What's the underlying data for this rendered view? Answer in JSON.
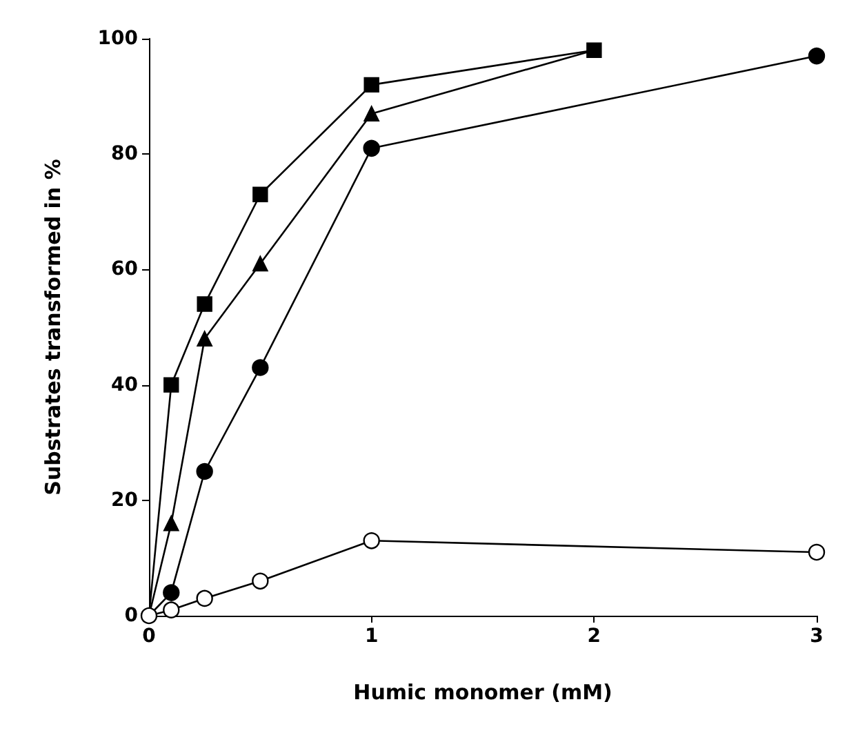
{
  "chart_data": {
    "type": "line",
    "xlabel": "Humic monomer (mM)",
    "ylabel": "Substrates transformed in %",
    "xlim": [
      0,
      3
    ],
    "xticks": [
      0,
      1,
      2,
      3
    ],
    "ylim": [
      0,
      100
    ],
    "yticks": [
      0,
      20,
      40,
      60,
      80,
      100
    ],
    "grid": false,
    "line_style": "solid",
    "series": [
      {
        "color": "#000000",
        "marker": "circle",
        "colors": [
          "#ffffff",
          "#ffffff",
          "#ffffff",
          "#ffffff",
          "#ffffff",
          "#ffffff"
        ],
        "x": [
          0,
          0.1,
          0.25,
          0.5,
          1,
          3
        ],
        "values": [
          0,
          1,
          3,
          6,
          13,
          11
        ]
      },
      {
        "color": "#000000",
        "marker": "square",
        "x": [
          0,
          0.1,
          0.25,
          0.5,
          1,
          2
        ],
        "values": [
          0,
          40,
          54,
          73,
          92,
          98
        ]
      },
      {
        "color": "#000000",
        "marker": "triangle",
        "x": [
          0,
          0.1,
          0.25,
          0.5,
          1,
          2
        ],
        "values": [
          0,
          16,
          48,
          61,
          87,
          98
        ]
      },
      {
        "color": "#000000",
        "marker": "circle",
        "x": [
          0,
          0.1,
          0.25,
          0.5,
          1,
          3
        ],
        "values": [
          0,
          4,
          25,
          43,
          81,
          97
        ]
      }
    ]
  }
}
